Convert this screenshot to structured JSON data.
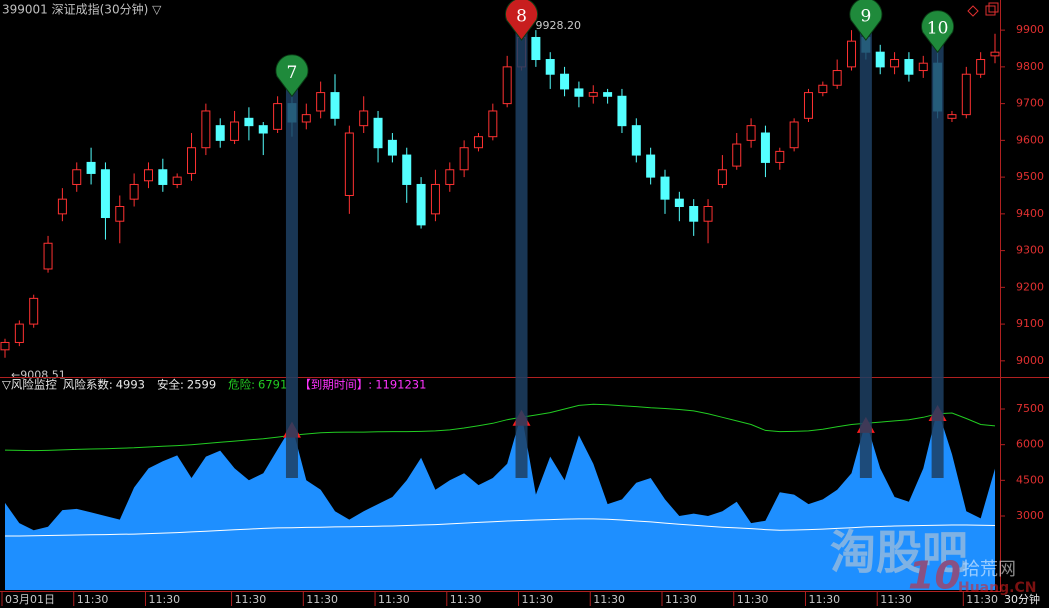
{
  "header": {
    "title": "399001 深证成指(30分钟) ▽",
    "period_label": "30分钟"
  },
  "watermark": {
    "main": "淘股吧",
    "badge": "10",
    "site": "拾荒网",
    "domain": "Huang.CN"
  },
  "chart_data": [
    {
      "type": "candlestick",
      "up_color": "#ff3232",
      "down_color": "#54ffff",
      "ylim": [
        8956,
        9982
      ],
      "yticks": [
        9000,
        9100,
        9200,
        9300,
        9400,
        9500,
        9600,
        9700,
        9800,
        9900
      ],
      "high_label": "9928.20",
      "low_label": "←9008.51",
      "open": [
        9030,
        9050,
        9100,
        9250,
        9400,
        9480,
        9540,
        9520,
        9380,
        9440,
        9490,
        9520,
        9480,
        9510,
        9580,
        9640,
        9600,
        9660,
        9640,
        9630,
        9700,
        9650,
        9680,
        9730,
        9450,
        9640,
        9660,
        9600,
        9560,
        9480,
        9400,
        9480,
        9520,
        9580,
        9610,
        9700,
        9800,
        9880,
        9820,
        9780,
        9740,
        9720,
        9730,
        9720,
        9640,
        9560,
        9500,
        9440,
        9420,
        9380,
        9480,
        9530,
        9600,
        9620,
        9540,
        9580,
        9660,
        9730,
        9750,
        9800,
        9880,
        9840,
        9800,
        9820,
        9790,
        9810,
        9660,
        9670,
        9780,
        9830
      ],
      "close": [
        9050,
        9100,
        9170,
        9320,
        9440,
        9520,
        9510,
        9390,
        9420,
        9480,
        9520,
        9480,
        9500,
        9580,
        9680,
        9600,
        9650,
        9640,
        9620,
        9700,
        9650,
        9670,
        9730,
        9660,
        9620,
        9680,
        9580,
        9560,
        9480,
        9370,
        9480,
        9520,
        9580,
        9610,
        9680,
        9800,
        9880,
        9820,
        9780,
        9740,
        9720,
        9730,
        9720,
        9640,
        9560,
        9500,
        9440,
        9420,
        9380,
        9420,
        9520,
        9590,
        9640,
        9540,
        9570,
        9650,
        9730,
        9750,
        9790,
        9870,
        9840,
        9800,
        9820,
        9780,
        9810,
        9680,
        9670,
        9780,
        9820,
        9840
      ],
      "high": [
        9060,
        9110,
        9180,
        9340,
        9470,
        9540,
        9580,
        9540,
        9450,
        9510,
        9540,
        9550,
        9510,
        9620,
        9700,
        9660,
        9680,
        9690,
        9650,
        9720,
        9720,
        9700,
        9760,
        9780,
        9640,
        9720,
        9680,
        9620,
        9580,
        9500,
        9520,
        9540,
        9600,
        9620,
        9700,
        9830,
        9928.2,
        9900,
        9840,
        9800,
        9760,
        9750,
        9740,
        9740,
        9660,
        9580,
        9520,
        9460,
        9440,
        9440,
        9560,
        9620,
        9660,
        9640,
        9580,
        9660,
        9740,
        9760,
        9820,
        9900,
        9910,
        9860,
        9840,
        9840,
        9830,
        9840,
        9680,
        9800,
        9840,
        9890
      ],
      "low": [
        9008.51,
        9040,
        9090,
        9240,
        9380,
        9460,
        9480,
        9330,
        9320,
        9420,
        9470,
        9460,
        9470,
        9490,
        9560,
        9580,
        9590,
        9600,
        9560,
        9620,
        9610,
        9630,
        9660,
        9640,
        9400,
        9620,
        9540,
        9540,
        9430,
        9360,
        9380,
        9460,
        9500,
        9570,
        9600,
        9690,
        9790,
        9800,
        9740,
        9720,
        9690,
        9700,
        9700,
        9620,
        9540,
        9480,
        9400,
        9380,
        9340,
        9320,
        9470,
        9520,
        9580,
        9500,
        9520,
        9570,
        9650,
        9720,
        9740,
        9790,
        9820,
        9780,
        9780,
        9760,
        9770,
        9660,
        9650,
        9660,
        9770,
        9810
      ],
      "signals": [
        null,
        null,
        null,
        null,
        null,
        null,
        null,
        null,
        null,
        null,
        null,
        null,
        null,
        null,
        null,
        null,
        null,
        null,
        null,
        null,
        {
          "label": "7",
          "color": "#1f8a3b"
        },
        null,
        null,
        null,
        null,
        null,
        null,
        null,
        null,
        null,
        null,
        null,
        null,
        null,
        null,
        null,
        {
          "label": "8",
          "color": "#c81e1e"
        },
        null,
        null,
        null,
        null,
        null,
        null,
        null,
        null,
        null,
        null,
        null,
        null,
        null,
        null,
        null,
        null,
        null,
        null,
        null,
        null,
        null,
        null,
        null,
        {
          "label": "9",
          "color": "#1f8a3b"
        },
        null,
        null,
        null,
        null,
        {
          "label": "10",
          "color": "#1f8a3b"
        },
        null,
        null,
        null,
        null
      ]
    },
    {
      "type": "area",
      "title": "▽风险监控",
      "ylim": [
        -112,
        8804
      ],
      "yticks": [
        3000,
        4500,
        6000,
        7500
      ],
      "categories": [
        "03月01日",
        null,
        null,
        null,
        null,
        "11:30",
        null,
        null,
        null,
        null,
        "11:30",
        null,
        null,
        null,
        null,
        null,
        "11:30",
        null,
        null,
        null,
        null,
        "11:30",
        null,
        null,
        null,
        null,
        "11:30",
        null,
        null,
        null,
        null,
        "11:30",
        null,
        null,
        null,
        null,
        "11:30",
        null,
        null,
        null,
        null,
        "11:30",
        null,
        null,
        null,
        null,
        "11:30",
        null,
        null,
        null,
        null,
        "11:30",
        null,
        null,
        null,
        null,
        "11:30",
        null,
        null,
        null,
        null,
        "11:30",
        null,
        null,
        null,
        null,
        null,
        "11:30",
        null,
        null
      ],
      "alert_color": "#ff1a1a",
      "series": [
        {
          "name": "风险系数:",
          "color": "#1e8fff",
          "label_color": "#e8e8e8",
          "values": [
            3550,
            2700,
            2400,
            2550,
            3250,
            3300,
            3150,
            3000,
            2850,
            4200,
            5000,
            5300,
            5550,
            4600,
            5500,
            5750,
            5000,
            4500,
            4800,
            5800,
            6800,
            4500,
            4100,
            3200,
            2850,
            3200,
            3500,
            3800,
            4500,
            5450,
            4100,
            4500,
            4800,
            4300,
            4600,
            5200,
            7300,
            3900,
            5500,
            4500,
            6400,
            5200,
            3500,
            3700,
            4400,
            4600,
            3700,
            3000,
            3100,
            3000,
            3200,
            3600,
            2700,
            2800,
            4000,
            3900,
            3500,
            3700,
            4100,
            4800,
            7000,
            5000,
            3800,
            3600,
            5000,
            7500,
            5600,
            3200,
            2900,
            4993
          ]
        },
        {
          "name": "安全:",
          "color": "#ffffff",
          "label_color": "#e8e8e8",
          "values": [
            2160,
            2160,
            2170,
            2180,
            2190,
            2200,
            2210,
            2220,
            2230,
            2240,
            2260,
            2280,
            2300,
            2330,
            2360,
            2390,
            2420,
            2450,
            2480,
            2500,
            2510,
            2520,
            2530,
            2540,
            2550,
            2560,
            2570,
            2580,
            2600,
            2620,
            2640,
            2670,
            2700,
            2730,
            2760,
            2790,
            2810,
            2830,
            2850,
            2870,
            2880,
            2880,
            2860,
            2830,
            2790,
            2750,
            2700,
            2650,
            2610,
            2570,
            2530,
            2500,
            2470,
            2430,
            2400,
            2410,
            2430,
            2450,
            2480,
            2510,
            2540,
            2560,
            2580,
            2590,
            2600,
            2610,
            2620,
            2620,
            2610,
            2599
          ]
        },
        {
          "name": "危险:",
          "color": "#22cc22",
          "label_color": "#22cc22",
          "values": [
            5770,
            5760,
            5750,
            5760,
            5780,
            5800,
            5820,
            5830,
            5850,
            5870,
            5900,
            5930,
            5960,
            6000,
            6050,
            6100,
            6150,
            6200,
            6250,
            6320,
            6400,
            6450,
            6500,
            6520,
            6530,
            6530,
            6540,
            6550,
            6550,
            6560,
            6580,
            6620,
            6700,
            6800,
            6900,
            7050,
            7150,
            7250,
            7350,
            7500,
            7650,
            7700,
            7680,
            7640,
            7600,
            7550,
            7520,
            7480,
            7420,
            7300,
            7150,
            7000,
            6850,
            6600,
            6550,
            6560,
            6580,
            6650,
            6750,
            6850,
            6900,
            6950,
            7000,
            7050,
            7150,
            7300,
            7330,
            7100,
            6850,
            6791
          ]
        }
      ],
      "expiry": {
        "label": "【到期时间】:",
        "value": "1191231",
        "color": "#ff33ff"
      }
    }
  ]
}
